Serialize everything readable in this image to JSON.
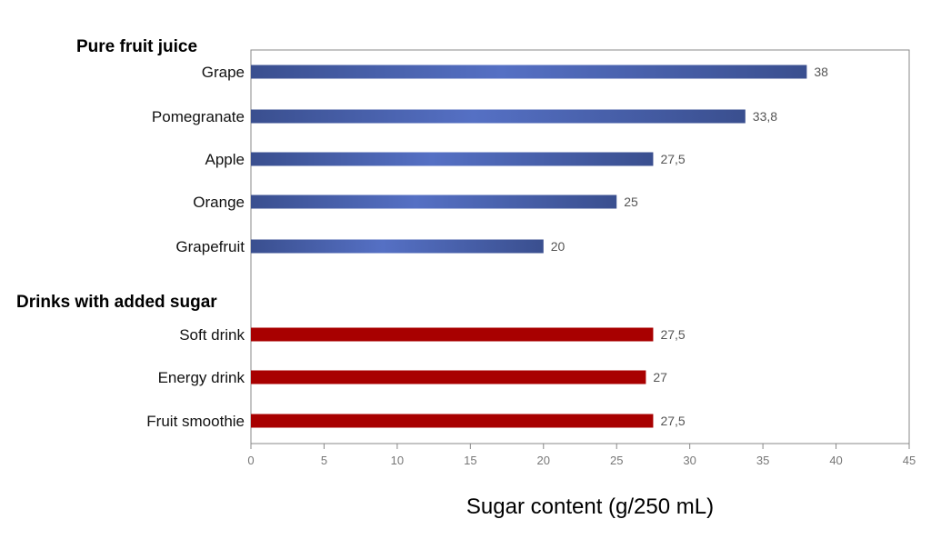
{
  "chart_data": {
    "type": "bar",
    "orientation": "horizontal",
    "xlabel": "Sugar content (g/250 mL)",
    "xlim": [
      0,
      45
    ],
    "xticks": [
      0,
      5,
      10,
      15,
      20,
      25,
      30,
      35,
      40,
      45
    ],
    "grid": false,
    "legend": "none",
    "groups": [
      {
        "title": "Pure fruit juice",
        "color": "#4a63b5",
        "categories": [
          "Grape",
          "Pomegranate",
          "Apple",
          "Orange",
          "Grapefruit"
        ],
        "values": [
          38,
          33.8,
          27.5,
          25,
          20
        ],
        "value_labels": [
          "38",
          "33,8",
          "27,5",
          "25",
          "20"
        ]
      },
      {
        "title": "Drinks with added sugar",
        "color": "#a80000",
        "categories": [
          "Soft drink",
          "Energy drink",
          "Fruit smoothie"
        ],
        "values": [
          27.5,
          27,
          27.5
        ],
        "value_labels": [
          "27,5",
          "27",
          "27,5"
        ]
      }
    ]
  }
}
